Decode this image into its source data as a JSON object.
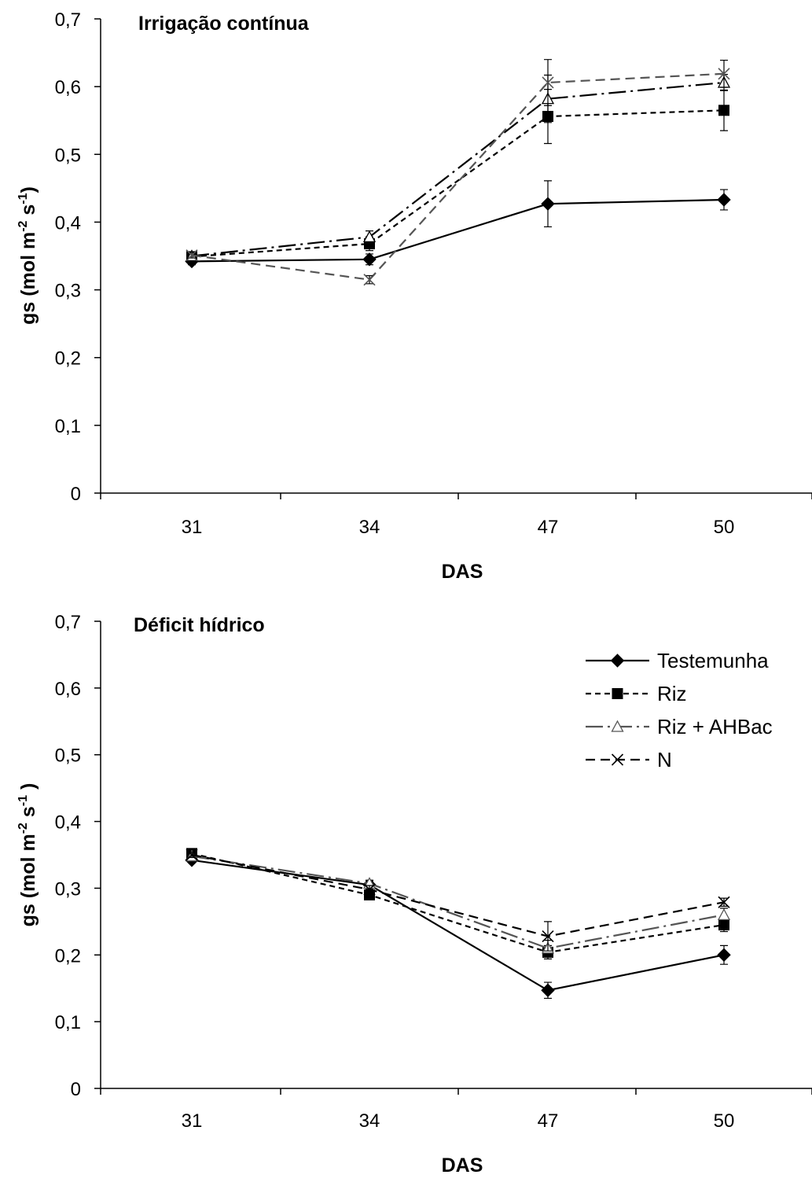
{
  "chart_data": [
    {
      "type": "line",
      "title": "Irrigação contínua",
      "xlabel": "DAS",
      "ylabel": "gs (mol m-2 s-1)",
      "ylabel_parts": {
        "main": "gs (mol m",
        "exp1": "-2",
        "mid": " s",
        "exp2": "-1",
        "end": ")"
      },
      "categories": [
        "31",
        "34",
        "47",
        "50"
      ],
      "ylim": [
        0,
        0.7
      ],
      "yticks": [
        0,
        0.1,
        0.2,
        0.3,
        0.4,
        0.5,
        0.6,
        0.7
      ],
      "ytick_labels": [
        "0",
        "0,1",
        "0,2",
        "0,3",
        "0,4",
        "0,5",
        "0,6",
        "0,7"
      ],
      "grid": false,
      "legend": "none",
      "series": [
        {
          "name": "Testemunha",
          "values": [
            0.342,
            0.345,
            0.427,
            0.433
          ],
          "errors": [
            0.005,
            0.008,
            0.034,
            0.015
          ],
          "color": "#000000",
          "dash": "",
          "marker": "diamond"
        },
        {
          "name": "Riz",
          "values": [
            0.349,
            0.368,
            0.556,
            0.565
          ],
          "errors": [
            0.004,
            0.01,
            0.04,
            0.03
          ],
          "color": "#000000",
          "dash": "7,5",
          "marker": "square"
        },
        {
          "name": "Riz + AHBac",
          "values": [
            0.35,
            0.378,
            0.582,
            0.606
          ],
          "errors": [
            0.004,
            0.009,
            0.035,
            0.012
          ],
          "color": "#000000",
          "dash": "22,6,3,6",
          "marker": "triangle"
        },
        {
          "name": "N",
          "values": [
            0.351,
            0.315,
            0.606,
            0.619
          ],
          "errors": [
            0.004,
            0.006,
            0.034,
            0.02
          ],
          "color": "#555555",
          "dash": "12,7",
          "marker": "x"
        }
      ]
    },
    {
      "type": "line",
      "title": "Déficit hídrico",
      "xlabel": "DAS",
      "ylabel": "gs (mol m-2 s-1 )",
      "ylabel_parts": {
        "main": "gs (mol m",
        "exp1": "-2",
        "mid": " s",
        "exp2": "-1",
        "end": " )"
      },
      "categories": [
        "31",
        "34",
        "47",
        "50"
      ],
      "ylim": [
        0,
        0.7
      ],
      "yticks": [
        0,
        0.1,
        0.2,
        0.3,
        0.4,
        0.5,
        0.6,
        0.7
      ],
      "ytick_labels": [
        "0",
        "0,1",
        "0,2",
        "0,3",
        "0,4",
        "0,5",
        "0,6",
        "0,7"
      ],
      "grid": false,
      "legend": "top-right",
      "series": [
        {
          "name": "Testemunha",
          "values": [
            0.342,
            0.305,
            0.147,
            0.2
          ],
          "errors": [
            0.004,
            0.006,
            0.012,
            0.014
          ],
          "color": "#000000",
          "dash": "",
          "marker": "diamond"
        },
        {
          "name": "Riz",
          "values": [
            0.352,
            0.29,
            0.204,
            0.245
          ],
          "errors": [
            0.004,
            0.006,
            0.01,
            0.01
          ],
          "color": "#000000",
          "dash": "7,5",
          "marker": "square"
        },
        {
          "name": "Riz + AHBac",
          "values": [
            0.348,
            0.307,
            0.21,
            0.26
          ],
          "errors": [
            0.004,
            0.005,
            0.012,
            0.01
          ],
          "color": "#555555",
          "dash": "22,6,3,6",
          "marker": "triangle"
        },
        {
          "name": "N",
          "values": [
            0.35,
            0.298,
            0.228,
            0.279
          ],
          "errors": [
            0.004,
            0.006,
            0.022,
            0.006
          ],
          "color": "#000000",
          "dash": "12,7",
          "marker": "x"
        }
      ]
    }
  ]
}
